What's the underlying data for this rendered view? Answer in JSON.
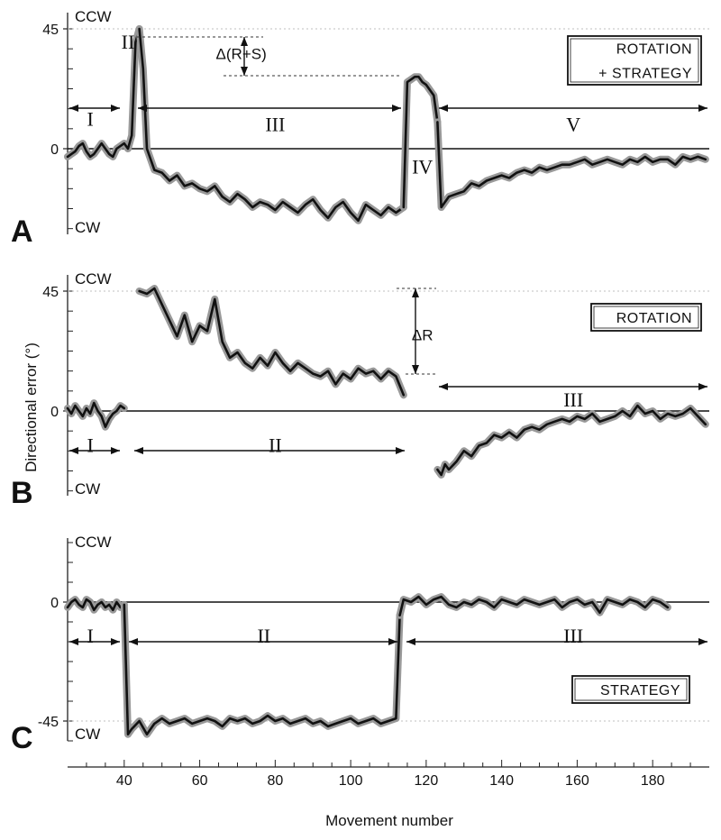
{
  "figure": {
    "ylabel": "Directional error (°)",
    "xlabel": "Movement number",
    "x_ticks": [
      "40",
      "60",
      "80",
      "100",
      "120",
      "140",
      "160",
      "180"
    ]
  },
  "chart_data": [
    {
      "type": "line",
      "panel": "A",
      "box_label": [
        "ROTATION",
        "+ STRATEGY"
      ],
      "ccw_label": "CCW",
      "cw_label": "CW",
      "yticks": [
        {
          "value": 45,
          "label": "45"
        },
        {
          "value": 0,
          "label": "0"
        }
      ],
      "ylim": [
        -32,
        50
      ],
      "xlim": [
        25,
        195
      ],
      "segments": [
        {
          "x": [
            25,
            26,
            27,
            28,
            29,
            30,
            31,
            32,
            33,
            34,
            35,
            36,
            37,
            38,
            39,
            40,
            41,
            42,
            43,
            44
          ],
          "y": [
            -3,
            -2,
            -1,
            1,
            2,
            -1,
            -3,
            -2,
            0,
            2,
            0,
            -2,
            -3,
            0,
            1,
            2,
            0,
            5,
            40,
            45
          ]
        },
        {
          "x": [
            44,
            45,
            46,
            48,
            50,
            52,
            54,
            56,
            58,
            60,
            62,
            64,
            66,
            68,
            70,
            72,
            74,
            76,
            78,
            80,
            82,
            84,
            86,
            88,
            90,
            92,
            94,
            96,
            98,
            100,
            102,
            104,
            106,
            108,
            110,
            112,
            114
          ],
          "y": [
            45,
            30,
            0,
            -8,
            -9,
            -12,
            -10,
            -14,
            -13,
            -15,
            -16,
            -14,
            -18,
            -20,
            -17,
            -19,
            -22,
            -20,
            -21,
            -23,
            -20,
            -22,
            -24,
            -21,
            -19,
            -23,
            -26,
            -22,
            -20,
            -24,
            -27,
            -21,
            -23,
            -25,
            -22,
            -24,
            -22
          ]
        },
        {
          "x": [
            114,
            115,
            116,
            117,
            118,
            119,
            120,
            121,
            122,
            123
          ],
          "y": [
            -22,
            25,
            26,
            27,
            27,
            25,
            24,
            22,
            20,
            10
          ]
        },
        {
          "x": [
            123,
            124,
            125,
            126,
            128,
            130,
            132,
            134,
            136,
            138,
            140,
            142,
            144,
            146,
            148,
            150,
            152,
            154,
            156,
            158,
            160,
            162,
            164,
            166,
            168,
            170,
            172,
            174,
            176,
            178,
            180,
            182,
            184,
            186,
            188,
            190,
            192,
            194
          ],
          "y": [
            10,
            -22,
            -20,
            -18,
            -17,
            -16,
            -13,
            -14,
            -12,
            -11,
            -10,
            -11,
            -9,
            -8,
            -9,
            -7,
            -8,
            -7,
            -6,
            -6,
            -5,
            -4,
            -6,
            -5,
            -4,
            -5,
            -6,
            -4,
            -5,
            -3,
            -5,
            -4,
            -4,
            -6,
            -3,
            -4,
            -3,
            -4
          ]
        }
      ],
      "annotations": [
        {
          "text": "I",
          "x": 31,
          "y": 11
        },
        {
          "text": "II",
          "x": 41,
          "y": 40
        },
        {
          "text": "III",
          "x": 80,
          "y": 9
        },
        {
          "text": "IV",
          "x": 119,
          "y": -7
        },
        {
          "text": "V",
          "x": 159,
          "y": 9
        },
        {
          "text": "Δ(R+S)",
          "x": 71,
          "y": 36
        }
      ]
    },
    {
      "type": "line",
      "panel": "B",
      "box_label": [
        "ROTATION"
      ],
      "ccw_label": "CCW",
      "cw_label": "CW",
      "yticks": [
        {
          "value": 45,
          "label": "45"
        },
        {
          "value": 0,
          "label": "0"
        }
      ],
      "ylim": [
        -30,
        50
      ],
      "xlim": [
        25,
        195
      ],
      "segments": [
        {
          "x": [
            25,
            26,
            27,
            28,
            29,
            30,
            31,
            32,
            33,
            34,
            35,
            36,
            37,
            38,
            39,
            40
          ],
          "y": [
            1,
            -1,
            2,
            0,
            -2,
            1,
            -1,
            3,
            0,
            -2,
            -6,
            -3,
            -1,
            0,
            2,
            1
          ]
        },
        {
          "x": [
            44,
            46,
            48,
            50,
            52,
            54,
            56,
            58,
            60,
            62,
            64,
            66,
            68,
            70,
            72,
            74,
            76,
            78,
            80,
            82,
            84,
            86,
            88,
            90,
            92,
            94,
            96,
            98,
            100,
            102,
            104,
            106,
            108,
            110,
            112,
            114
          ],
          "y": [
            45,
            44,
            46,
            40,
            34,
            28,
            36,
            26,
            32,
            30,
            42,
            26,
            20,
            22,
            18,
            16,
            20,
            17,
            22,
            18,
            15,
            18,
            16,
            14,
            13,
            15,
            10,
            14,
            12,
            16,
            14,
            15,
            12,
            15,
            13,
            6
          ]
        },
        {
          "x": [
            123,
            124,
            125,
            126,
            128,
            130,
            132,
            134,
            136,
            138,
            140,
            142,
            144,
            146,
            148,
            150,
            152,
            154,
            156,
            158,
            160,
            162,
            164,
            166,
            168,
            170,
            172,
            174,
            176,
            178,
            180,
            182,
            184,
            186,
            188,
            190,
            192,
            194
          ],
          "y": [
            -22,
            -24,
            -20,
            -22,
            -19,
            -15,
            -17,
            -13,
            -12,
            -9,
            -10,
            -8,
            -10,
            -7,
            -6,
            -7,
            -5,
            -4,
            -3,
            -4,
            -2,
            -3,
            -1,
            -4,
            -3,
            -2,
            0,
            -2,
            2,
            -1,
            0,
            -3,
            -1,
            -2,
            -1,
            1,
            -2,
            -5
          ]
        }
      ],
      "annotations": [
        {
          "text": "I",
          "x": 31,
          "y": -13
        },
        {
          "text": "II",
          "x": 80,
          "y": -13
        },
        {
          "text": "III",
          "x": 159,
          "y": 4
        },
        {
          "text": "ΔR",
          "x": 119,
          "y": 29
        }
      ]
    },
    {
      "type": "line",
      "panel": "C",
      "box_label": [
        "STRATEGY"
      ],
      "ccw_label": "CCW",
      "cw_label": "CW",
      "yticks": [
        {
          "value": 0,
          "label": "0"
        },
        {
          "value": -45,
          "label": "-45"
        }
      ],
      "ylim": [
        -55,
        25
      ],
      "xlim": [
        25,
        195
      ],
      "segments": [
        {
          "x": [
            25,
            26,
            27,
            28,
            29,
            30,
            31,
            32,
            33,
            34,
            35,
            36,
            37,
            38,
            39,
            40
          ],
          "y": [
            -2,
            0,
            1,
            -1,
            -2,
            1,
            0,
            -3,
            -1,
            0,
            -2,
            -1,
            -3,
            0,
            -2,
            -1
          ]
        },
        {
          "x": [
            40,
            41,
            42,
            44,
            46,
            48,
            50,
            52,
            54,
            56,
            58,
            60,
            62,
            64,
            66,
            68,
            70,
            72,
            74,
            76,
            78,
            80,
            82,
            84,
            86,
            88,
            90,
            92,
            94,
            96,
            98,
            100,
            102,
            104,
            106,
            108,
            110,
            112,
            113
          ],
          "y": [
            -1,
            -50,
            -48,
            -45,
            -50,
            -46,
            -44,
            -46,
            -45,
            -44,
            -46,
            -45,
            -44,
            -45,
            -47,
            -44,
            -45,
            -44,
            -46,
            -45,
            -43,
            -45,
            -44,
            -46,
            -45,
            -44,
            -46,
            -45,
            -47,
            -46,
            -45,
            -44,
            -46,
            -45,
            -44,
            -46,
            -45,
            -44,
            -5
          ]
        },
        {
          "x": [
            113,
            114,
            116,
            118,
            120,
            122,
            124,
            126,
            128,
            130,
            132,
            134,
            136,
            138,
            140,
            142,
            144,
            146,
            148,
            150,
            152,
            154,
            156,
            158,
            160,
            162,
            164,
            166,
            168,
            170,
            172,
            174,
            176,
            178,
            180,
            182,
            184
          ],
          "y": [
            -5,
            1,
            0,
            2,
            -1,
            1,
            2,
            -1,
            -2,
            0,
            -1,
            1,
            0,
            -2,
            1,
            0,
            -1,
            1,
            0,
            -1,
            0,
            1,
            -2,
            0,
            1,
            -1,
            0,
            -4,
            1,
            0,
            -1,
            1,
            0,
            -2,
            1,
            0,
            -2
          ]
        }
      ],
      "annotations": [
        {
          "text": "I",
          "x": 31,
          "y": -13
        },
        {
          "text": "II",
          "x": 77,
          "y": -13
        },
        {
          "text": "III",
          "x": 159,
          "y": -13
        }
      ]
    }
  ]
}
